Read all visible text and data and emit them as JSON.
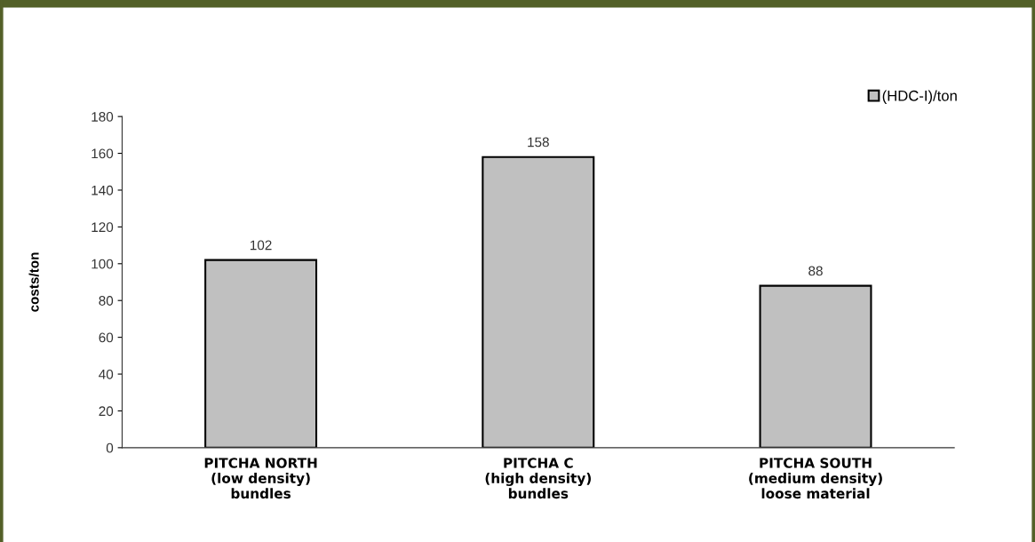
{
  "chart_data": {
    "type": "bar",
    "ylabel": "costs/ton",
    "categories": [
      "PITCHA NORTH\n(low density)\nbundles",
      "PITCHA C\n(high density)\nbundles",
      "PITCHA SOUTH\n(medium density)\nloose material"
    ],
    "series": [
      {
        "name": "(HDC-I)/ton",
        "color": "#c0c0c0",
        "values": [
          102,
          158,
          88
        ]
      }
    ],
    "ylim": [
      0,
      180
    ],
    "yticks": [
      0,
      20,
      40,
      60,
      80,
      100,
      120,
      140,
      160,
      180
    ],
    "data_labels": true,
    "legend": "top right",
    "grid": false
  }
}
